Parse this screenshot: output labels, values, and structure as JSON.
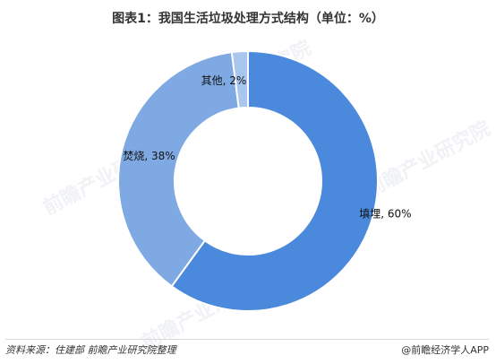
{
  "chart_data": {
    "type": "pie",
    "variant": "donut",
    "title": "图表1：我国生活垃圾处理方式结构（单位：%）",
    "slices": [
      {
        "name": "填埋",
        "value": 60,
        "label": "填埋, 60%",
        "color": "#4a89dc"
      },
      {
        "name": "焚烧",
        "value": 38,
        "label": "焚烧, 38%",
        "color": "#7fa9e3"
      },
      {
        "name": "其他",
        "value": 2,
        "label": "其他, 2%",
        "color": "#a9c6ef"
      }
    ],
    "legend": "none"
  },
  "footer": {
    "source": "资料来源：住建部  前瞻产业研究院整理",
    "brand": "@前瞻经济学人APP"
  },
  "watermark": {
    "text": "前瞻产业研究院"
  }
}
